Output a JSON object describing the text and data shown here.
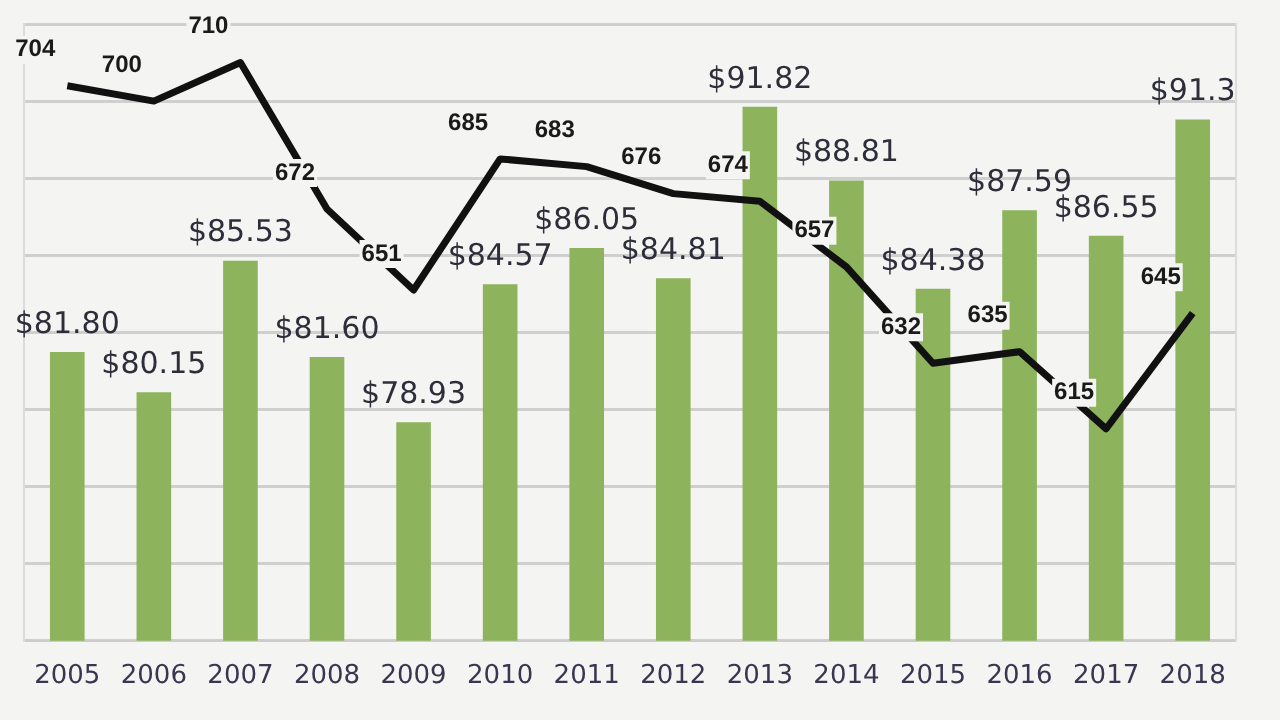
{
  "chart_data": {
    "type": "bar",
    "categories": [
      "2005",
      "2006",
      "2007",
      "2008",
      "2009",
      "2010",
      "2011",
      "2012",
      "2013",
      "2014",
      "2015",
      "2016",
      "2017",
      "2018"
    ],
    "series": [
      {
        "color": "#8db35c",
        "values": [
          81.8,
          80.15,
          85.53,
          81.6,
          78.93,
          84.57,
          86.05,
          84.81,
          91.82,
          88.81,
          84.38,
          87.59,
          86.55,
          91.3
        ],
        "value_labels": [
          "$81.80",
          "$80.15",
          "$85.53",
          "$81.60",
          "$78.93",
          "$84.57",
          "$86.05",
          "$84.81",
          "$91.82",
          "$88.81",
          "$84.38",
          "$87.59",
          "$86.55",
          "$91.3"
        ]
      },
      {
        "type": "line",
        "axis": "y2",
        "color": "#111111",
        "values": [
          704,
          700,
          710,
          672,
          651,
          685,
          683,
          676,
          674,
          657,
          632,
          635,
          615,
          645
        ],
        "value_labels": [
          "704",
          "700",
          "710",
          "672",
          "651",
          "685",
          "683",
          "676",
          "674",
          "657",
          "632",
          "635",
          "615",
          "645"
        ]
      }
    ],
    "ylim": [
      70,
      95.2
    ],
    "y2lim": [
      560,
      720
    ],
    "y2ticks": [
      {
        "value": 560,
        "label": null
      },
      {
        "value": 580,
        "label": null
      },
      {
        "value": 600,
        "label": null
      },
      {
        "value": 620,
        "label": null
      },
      {
        "value": 640,
        "label": null
      },
      {
        "value": 660,
        "label": null
      },
      {
        "value": 680,
        "label": null
      },
      {
        "value": 700,
        "label": null
      },
      {
        "value": 720,
        "label": null
      }
    ],
    "grid": "y2",
    "tick_labels": "x",
    "legend": false,
    "marker": "none",
    "line_style": "solid"
  }
}
